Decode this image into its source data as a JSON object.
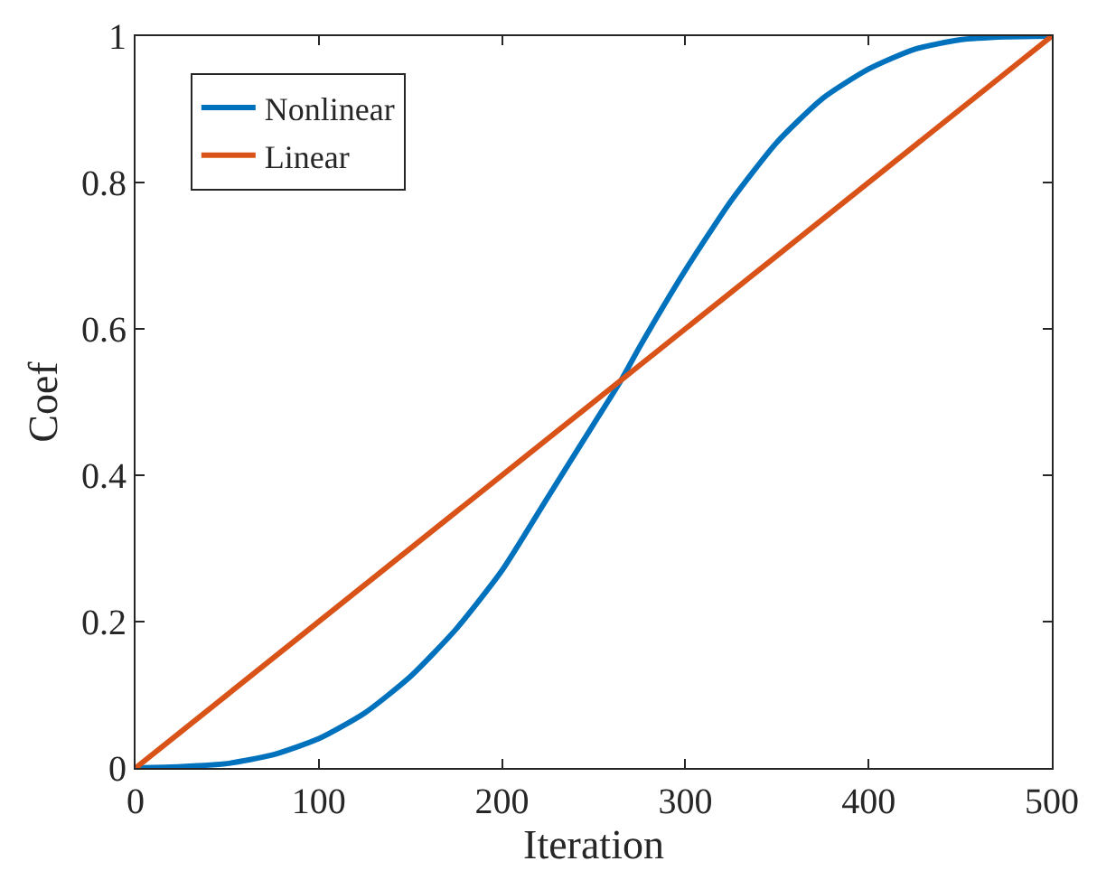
{
  "chart_data": {
    "type": "line",
    "xlabel": "Iteration",
    "ylabel": "Coef",
    "x": [
      0,
      25,
      50,
      75,
      100,
      125,
      150,
      175,
      200,
      225,
      250,
      265,
      275,
      300,
      325,
      350,
      375,
      400,
      425,
      450,
      475,
      500
    ],
    "series": [
      {
        "name": "Nonlinear",
        "color": "#0072bd",
        "values": [
          0,
          0.002,
          0.006,
          0.018,
          0.04,
          0.075,
          0.125,
          0.19,
          0.27,
          0.37,
          0.47,
          0.53,
          0.575,
          0.68,
          0.775,
          0.855,
          0.915,
          0.955,
          0.982,
          0.995,
          0.999,
          1
        ]
      },
      {
        "name": "Linear",
        "color": "#d95319",
        "x": [
          0,
          500
        ],
        "values": [
          0,
          1
        ]
      }
    ],
    "xlim": [
      0,
      500
    ],
    "xticks": [
      0,
      100,
      200,
      300,
      400,
      500
    ],
    "ylim": [
      0,
      1
    ],
    "yticks": [
      0,
      0.2,
      0.4,
      0.6,
      0.8,
      1
    ],
    "legend": "top left",
    "line_style": "solid",
    "marker": "none"
  }
}
